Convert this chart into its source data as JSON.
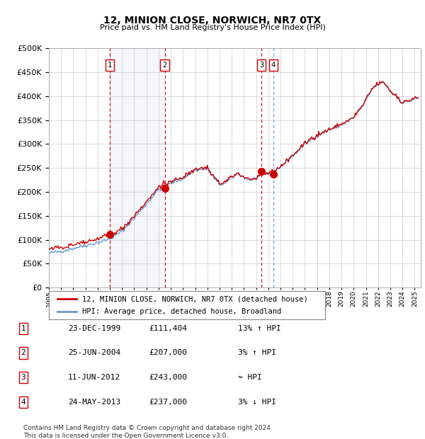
{
  "title": "12, MINION CLOSE, NORWICH, NR7 0TX",
  "subtitle": "Price paid vs. HM Land Registry's House Price Index (HPI)",
  "ytick_values": [
    0,
    50000,
    100000,
    150000,
    200000,
    250000,
    300000,
    350000,
    400000,
    450000,
    500000
  ],
  "ylim": [
    0,
    500000
  ],
  "xlim_start": 1995.0,
  "xlim_end": 2025.5,
  "sale_points": [
    {
      "label": "1",
      "date_num": 2000.0,
      "price": 111404
    },
    {
      "label": "2",
      "date_num": 2004.5,
      "price": 207000
    },
    {
      "label": "3",
      "date_num": 2012.45,
      "price": 243000
    },
    {
      "label": "4",
      "date_num": 2013.4,
      "price": 237000
    }
  ],
  "vline_red_dashed": [
    2000.0,
    2004.5,
    2012.45
  ],
  "vline_blue_dashed": [
    2013.4
  ],
  "shaded_region": [
    2000.0,
    2004.5
  ],
  "hpi_color": "#6699cc",
  "price_color": "#cc0000",
  "grid_color": "#cccccc",
  "bg_color": "#ffffff",
  "legend_entries": [
    {
      "label": "12, MINION CLOSE, NORWICH, NR7 0TX (detached house)",
      "color": "#cc0000"
    },
    {
      "label": "HPI: Average price, detached house, Broadland",
      "color": "#6699cc"
    }
  ],
  "table_rows": [
    {
      "num": "1",
      "date": "23-DEC-1999",
      "price": "£111,404",
      "hpi": "13% ↑ HPI"
    },
    {
      "num": "2",
      "date": "25-JUN-2004",
      "price": "£207,000",
      "hpi": "3% ↑ HPI"
    },
    {
      "num": "3",
      "date": "11-JUN-2012",
      "price": "£243,000",
      "hpi": "≈ HPI"
    },
    {
      "num": "4",
      "date": "24-MAY-2013",
      "price": "£237,000",
      "hpi": "3% ↓ HPI"
    }
  ],
  "footnote": "Contains HM Land Registry data © Crown copyright and database right 2024.\nThis data is licensed under the Open Government Licence v3.0."
}
